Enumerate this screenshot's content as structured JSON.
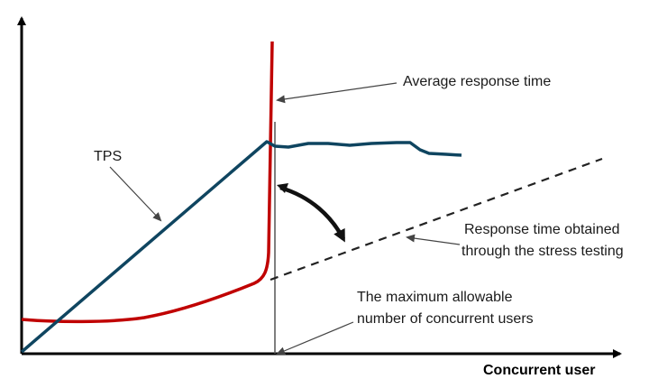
{
  "labels": {
    "tps": "TPS",
    "avg_response": "Average response time",
    "stress_line1": "Response time obtained",
    "stress_line2": "through the stress testing",
    "max_line1": "The maximum allowable",
    "max_line2": "number of concurrent users",
    "x_axis": "Concurrent user"
  },
  "colors": {
    "tps_curve": "#0f4560",
    "response_curve": "#c00000",
    "axis": "#000000",
    "pointer": "#555555",
    "dashed": "#222222",
    "curved_arrow": "#111111"
  }
}
